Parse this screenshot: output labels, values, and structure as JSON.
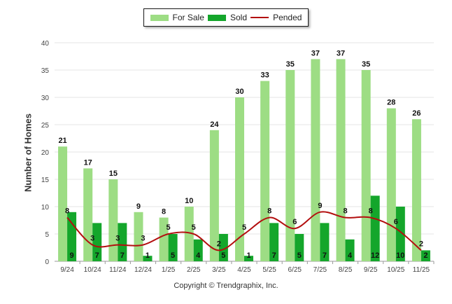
{
  "chart_data": {
    "type": "bar",
    "title": "",
    "xlabel": "",
    "ylabel": "Number of Homes",
    "ylim": [
      0,
      40
    ],
    "yticks": [
      0,
      5,
      10,
      15,
      20,
      25,
      30,
      35,
      40
    ],
    "grid": true,
    "legend": "top-center",
    "categories": [
      "9/24",
      "10/24",
      "11/24",
      "12/24",
      "1/25",
      "2/25",
      "3/25",
      "4/25",
      "5/25",
      "6/25",
      "7/25",
      "8/25",
      "9/25",
      "10/25",
      "11/25"
    ],
    "series": [
      {
        "name": "For Sale",
        "kind": "bar",
        "color": "#9ddd84",
        "values": [
          21,
          17,
          15,
          9,
          8,
          10,
          24,
          30,
          33,
          35,
          37,
          37,
          35,
          28,
          26
        ]
      },
      {
        "name": "Sold",
        "kind": "bar",
        "color": "#14a62b",
        "values": [
          9,
          7,
          7,
          1,
          5,
          4,
          5,
          1,
          7,
          5,
          7,
          4,
          12,
          10,
          2
        ]
      },
      {
        "name": "Pended",
        "kind": "line",
        "color": "#b30f0f",
        "values": [
          8,
          3,
          3,
          3,
          5,
          5,
          2,
          5,
          8,
          6,
          9,
          8,
          8,
          6,
          2
        ]
      }
    ]
  },
  "footer": {
    "copyright": "Copyright © Trendgraphix, Inc."
  }
}
